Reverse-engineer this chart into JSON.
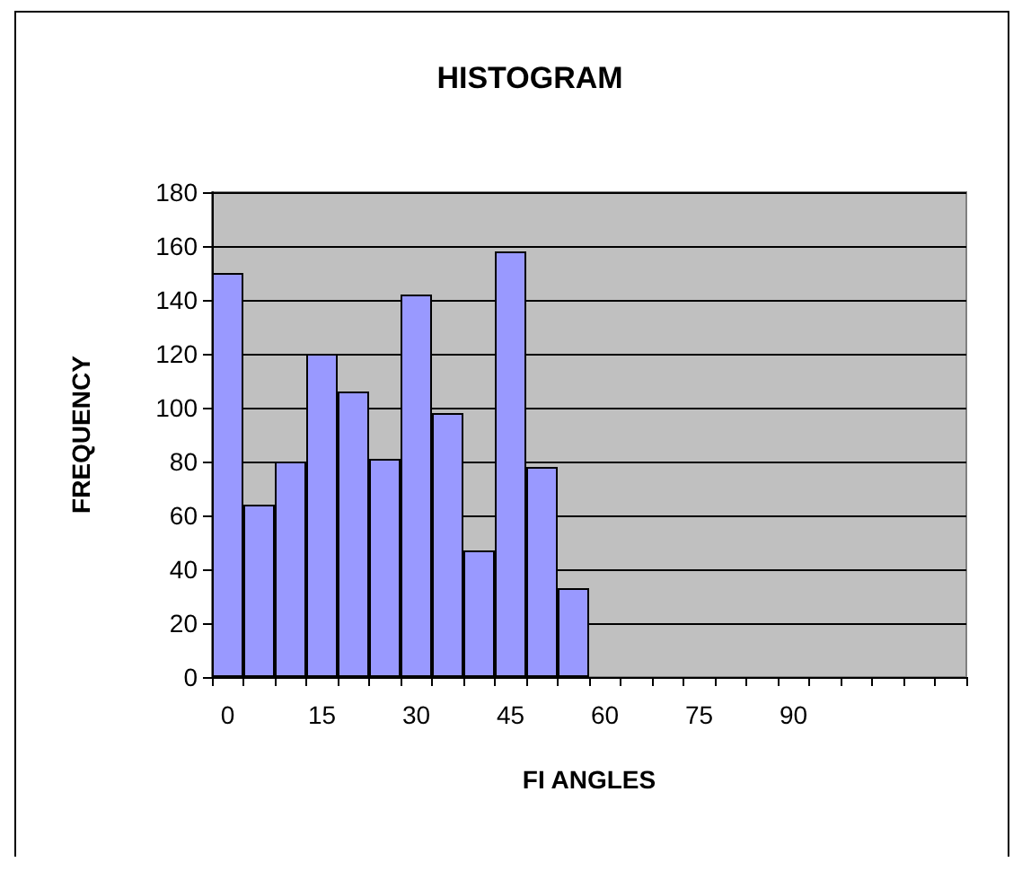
{
  "chart_data": {
    "type": "bar",
    "title": "HISTOGRAM",
    "xlabel": "FI ANGLES",
    "ylabel": "FREQUENCY",
    "categories": [
      "0",
      null,
      null,
      "15",
      null,
      null,
      "30",
      null,
      null,
      "45",
      null,
      null,
      "60",
      null,
      null,
      "75",
      null,
      null,
      "90",
      null,
      null,
      null,
      null,
      null
    ],
    "values": [
      150,
      64,
      80,
      120,
      106,
      81,
      142,
      98,
      47,
      158,
      78,
      33,
      null,
      null,
      null,
      null,
      null,
      null,
      null,
      null,
      null,
      null,
      null,
      null
    ],
    "color": "#9999ff",
    "ylim": [
      0,
      180
    ],
    "yticks": [
      0,
      20,
      40,
      60,
      80,
      100,
      120,
      140,
      160,
      180
    ],
    "grid": "y"
  }
}
